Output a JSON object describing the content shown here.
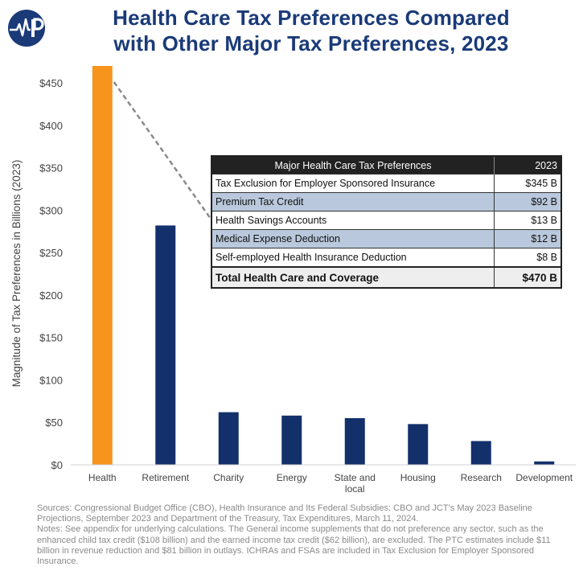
{
  "colors": {
    "title": "#1a3a78",
    "health_bar": "#f7941d",
    "other_bars": "#13306b",
    "axis_text": "#444444"
  },
  "logo": {
    "icon": "heartbeat-logo-icon"
  },
  "title_lines": [
    "Health Care Tax Preferences Compared",
    "with Other Major Tax Preferences, 2023"
  ],
  "chart_data": {
    "type": "bar",
    "title": "Health Care Tax Preferences Compared with Other Major Tax Preferences, 2023",
    "ylabel": "Magnitude of Tax Preferences in Billions (2023)",
    "xlabel": "",
    "ylim": [
      0,
      470
    ],
    "yticks": [
      0,
      50,
      100,
      150,
      200,
      250,
      300,
      350,
      400,
      450
    ],
    "ytick_labels": [
      "$0",
      "$50",
      "$100",
      "$150",
      "$200",
      "$250",
      "$300",
      "$350",
      "$400",
      "$450"
    ],
    "categories": [
      [
        "Health"
      ],
      [
        "Retirement"
      ],
      [
        "Charity"
      ],
      [
        "Energy"
      ],
      [
        "State and",
        "local"
      ],
      [
        "Housing"
      ],
      [
        "Research"
      ],
      [
        "Development"
      ]
    ],
    "values": [
      470,
      282,
      62,
      58,
      55,
      48,
      28,
      4
    ],
    "grid": false,
    "legend": "none"
  },
  "table": {
    "header": [
      "Major Health Care Tax Preferences",
      "2023"
    ],
    "rows": [
      {
        "label": "Tax Exclusion for Employer Sponsored Insurance",
        "value": "$345 B"
      },
      {
        "label": "Premium Tax Credit",
        "value": "$92 B"
      },
      {
        "label": "Health Savings Accounts",
        "value": "$13 B"
      },
      {
        "label": "Medical Expense Deduction",
        "value": "$12 B"
      },
      {
        "label": "Self-employed Health Insurance Deduction",
        "value": "$8 B"
      }
    ],
    "total": {
      "label": "Total Health Care and Coverage",
      "value": "$470 B"
    }
  },
  "notes": {
    "sources": "Sources: Congressional Budget Office (CBO), Health Insurance and Its Federal Subsidies: CBO and JCT’s May 2023 Baseline Projections, September 2023 and Department of the Treasury, Tax Expenditures, March 11, 2024.",
    "notes": "Notes:  See appendix for underlying calculations. The General income supplements that do not preference any sector, such as the enhanced child tax credit ($108 billion) and the earned income tax credit ($62 billion), are excluded. The PTC estimates include $11 billion in revenue reduction and $81 billion in outlays. ICHRAs and FSAs are included in Tax Exclusion for Employer Sponsored Insurance."
  }
}
